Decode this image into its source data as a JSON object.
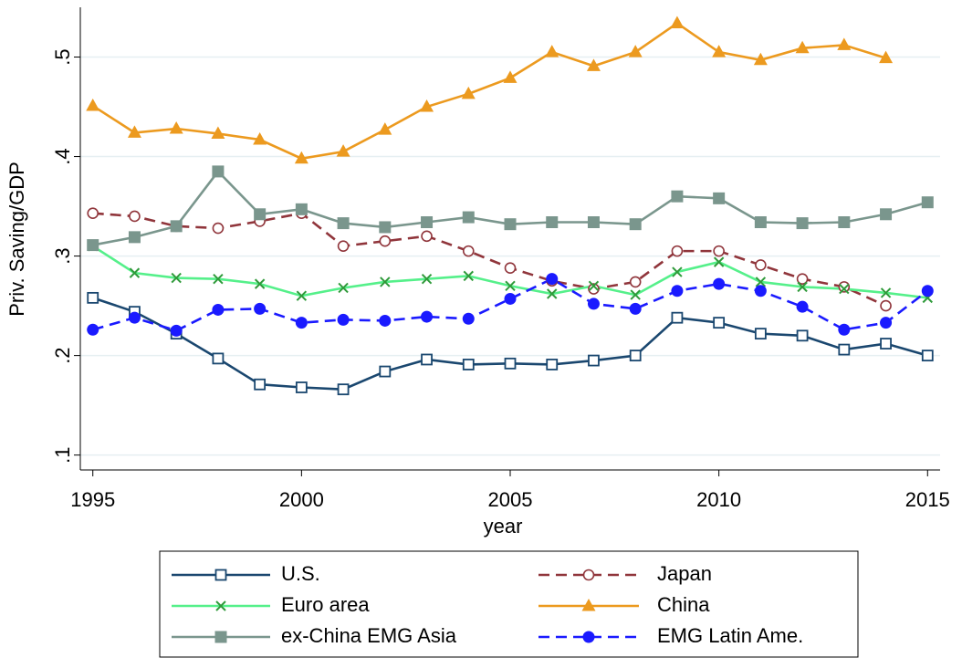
{
  "chart_data": {
    "type": "line",
    "x_label": "year",
    "y_label": "Priv. Saving/GDP",
    "x": [
      1995,
      1996,
      1997,
      1998,
      1999,
      2000,
      2001,
      2002,
      2003,
      2004,
      2005,
      2006,
      2007,
      2008,
      2009,
      2010,
      2011,
      2012,
      2013,
      2014,
      2015
    ],
    "xlim": [
      1994.7,
      2015.3
    ],
    "xticks": [
      1995,
      2000,
      2005,
      2010,
      2015
    ],
    "ylim": [
      0.085,
      0.55
    ],
    "yticks": [
      {
        "value": 0.1,
        "label": ".1"
      },
      {
        "value": 0.2,
        "label": ".2"
      },
      {
        "value": 0.3,
        "label": ".3"
      },
      {
        "value": 0.4,
        "label": ".4"
      },
      {
        "value": 0.5,
        "label": ".5"
      }
    ],
    "grid": true,
    "series": [
      {
        "name": "U.S.",
        "color": "#1a476f",
        "marker": "hollow-square",
        "dash": false,
        "values": [
          0.258,
          0.244,
          0.222,
          0.197,
          0.171,
          0.168,
          0.166,
          0.184,
          0.196,
          0.191,
          0.192,
          0.191,
          0.195,
          0.2,
          0.238,
          0.233,
          0.222,
          0.22,
          0.206,
          0.212,
          0.2
        ]
      },
      {
        "name": "Japan",
        "color": "#90353b",
        "marker": "hollow-circle",
        "dash": true,
        "values": [
          0.343,
          0.34,
          0.33,
          0.328,
          0.335,
          0.343,
          0.31,
          0.315,
          0.32,
          0.305,
          0.288,
          0.275,
          0.267,
          0.274,
          0.305,
          0.305,
          0.291,
          0.277,
          0.269,
          0.25,
          null
        ]
      },
      {
        "name": "Euro area",
        "color": "#55f08a",
        "marker_color": "#2f9a3a",
        "marker": "x",
        "dash": false,
        "values": [
          0.31,
          0.283,
          0.278,
          0.277,
          0.272,
          0.26,
          0.268,
          0.274,
          0.277,
          0.28,
          0.27,
          0.262,
          0.27,
          0.261,
          0.284,
          0.294,
          0.274,
          0.269,
          0.267,
          0.263,
          0.258
        ]
      },
      {
        "name": "China",
        "color": "#ec9a1f",
        "marker": "triangle",
        "dash": false,
        "values": [
          0.451,
          0.424,
          0.428,
          0.423,
          0.417,
          0.398,
          0.405,
          0.427,
          0.45,
          0.463,
          0.479,
          0.505,
          0.491,
          0.505,
          0.534,
          0.505,
          0.497,
          0.509,
          0.512,
          0.499,
          null
        ]
      },
      {
        "name": "ex-China EMG Asia",
        "color": "#7a968d",
        "marker": "square",
        "dash": false,
        "values": [
          0.311,
          0.319,
          0.33,
          0.385,
          0.342,
          0.347,
          0.333,
          0.329,
          0.334,
          0.339,
          0.332,
          0.334,
          0.334,
          0.332,
          0.36,
          0.358,
          0.334,
          0.333,
          0.334,
          0.342,
          0.354
        ]
      },
      {
        "name": "EMG Latin Ame.",
        "color": "#1a1aff",
        "marker": "circle",
        "dash": true,
        "values": [
          0.226,
          0.238,
          0.225,
          0.246,
          0.247,
          0.233,
          0.236,
          0.235,
          0.239,
          0.237,
          0.257,
          0.277,
          0.252,
          0.247,
          0.265,
          0.272,
          0.265,
          0.249,
          0.226,
          0.233,
          0.265
        ]
      }
    ]
  }
}
